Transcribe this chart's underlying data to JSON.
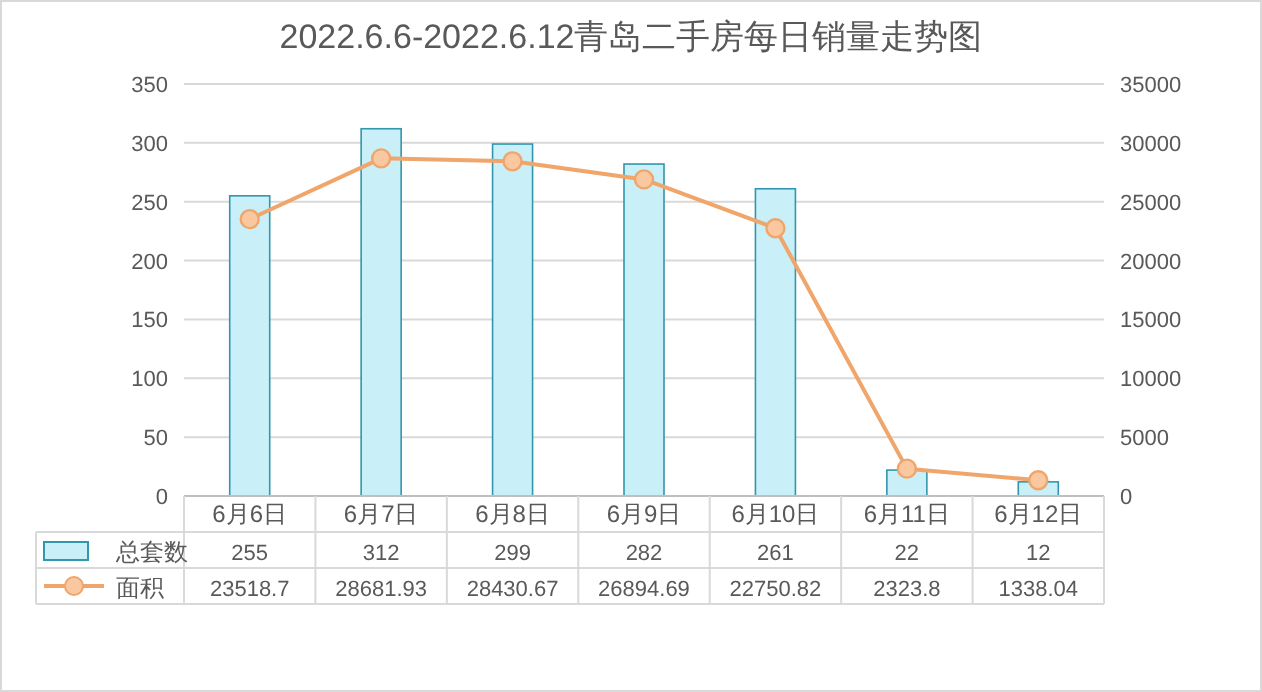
{
  "chart_data": {
    "type": "bar",
    "title": "2022.6.6-2022.6.12青岛二手房每日销量走势图",
    "categories": [
      "6月6日",
      "6月7日",
      "6月8日",
      "6月9日",
      "6月10日",
      "6月11日",
      "6月12日"
    ],
    "series": [
      {
        "name": "总套数",
        "color": "#c9eff9",
        "values": [
          255,
          312,
          299,
          282,
          261,
          22,
          12
        ]
      },
      {
        "name": "面积",
        "type": "line",
        "axis": "y2",
        "color": "#f0a56a",
        "marker": "circle",
        "values": [
          23518.7,
          28681.93,
          28430.67,
          26894.69,
          22750.82,
          2323.8,
          1338.04
        ]
      }
    ],
    "ylim": [
      0,
      350
    ],
    "yticks": [
      0,
      50,
      100,
      150,
      200,
      250,
      300,
      350
    ],
    "y2lim": [
      0,
      35000
    ],
    "y2ticks": [
      0,
      5000,
      10000,
      15000,
      20000,
      25000,
      30000,
      35000
    ],
    "grid": "y",
    "data_labels": true,
    "legend": "bottom"
  }
}
